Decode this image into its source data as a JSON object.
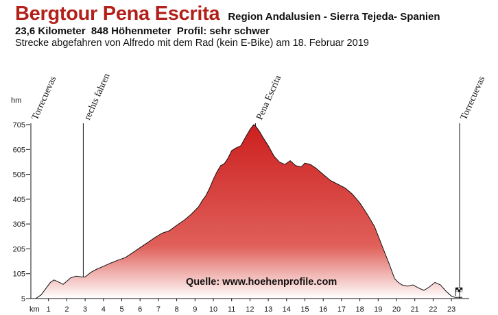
{
  "header": {
    "title": "Bergtour Pena Escrita",
    "region": "Region Andalusien - Sierra Tejeda- Spanien",
    "stats": "23,6 Kilometer  848 Höhenmeter  Profil: sehr schwer",
    "subtitle": "Strecke abgefahren von Alfredo mit dem Rad (kein E-Bike) am 18. Februar 2019"
  },
  "chart_data": {
    "type": "area",
    "title": "Bergtour Pena Escrita",
    "xlabel": "km",
    "ylabel": "hm",
    "xlim": [
      0,
      23.6
    ],
    "ylim": [
      5,
      705
    ],
    "x_ticks": [
      1,
      2,
      3,
      4,
      5,
      6,
      7,
      8,
      9,
      10,
      11,
      12,
      13,
      14,
      15,
      16,
      17,
      18,
      19,
      20,
      21,
      22,
      23
    ],
    "y_ticks": [
      5,
      105,
      205,
      305,
      405,
      505,
      605,
      705
    ],
    "fill_top_color": "#cc1f1f",
    "fill_bottom_color": "#ffffff",
    "series": [
      {
        "x": [
          0,
          0.3,
          0.6,
          0.9,
          1.1,
          1.3,
          1.6,
          1.8,
          2.0,
          2.2,
          2.5,
          2.8,
          3.0,
          3.3,
          3.6,
          4.0,
          4.4,
          4.8,
          5.2,
          5.6,
          6.0,
          6.4,
          6.8,
          7.2,
          7.6,
          8.0,
          8.4,
          8.8,
          9.2,
          9.4,
          9.6,
          9.8,
          10.0,
          10.2,
          10.4,
          10.6,
          10.8,
          11.0,
          11.2,
          11.5,
          11.8,
          12.0,
          12.2,
          12.3,
          12.5,
          12.7,
          13.0,
          13.3,
          13.6,
          13.9,
          14.2,
          14.5,
          14.8,
          15.0,
          15.3,
          15.6,
          16.0,
          16.4,
          16.8,
          17.2,
          17.6,
          18.0,
          18.4,
          18.8,
          19.2,
          19.6,
          19.9,
          20.1,
          20.3,
          20.6,
          20.9,
          21.2,
          21.5,
          21.8,
          22.1,
          22.4,
          22.7,
          23.0,
          23.2,
          23.6
        ],
        "y": [
          5,
          5,
          20,
          50,
          70,
          80,
          70,
          62,
          75,
          88,
          95,
          92,
          92,
          110,
          122,
          135,
          148,
          160,
          170,
          190,
          210,
          230,
          250,
          268,
          278,
          300,
          320,
          345,
          375,
          400,
          420,
          450,
          485,
          515,
          540,
          548,
          570,
          600,
          610,
          620,
          660,
          685,
          705,
          700,
          680,
          655,
          620,
          580,
          555,
          545,
          560,
          540,
          535,
          550,
          545,
          530,
          505,
          480,
          465,
          450,
          425,
          390,
          345,
          295,
          220,
          145,
          85,
          70,
          60,
          55,
          60,
          48,
          38,
          52,
          70,
          60,
          35,
          15,
          10,
          10
        ]
      }
    ],
    "markers": [
      {
        "label": "Torrecuevas",
        "km": 0
      },
      {
        "label": "rechts fahren",
        "km": 2.9
      },
      {
        "label": "Pena Escrita",
        "km": 12.3
      },
      {
        "label": "Torrecuevas",
        "km": 23.6
      }
    ],
    "annotation": "Quelle: www.hoehenprofile.com"
  }
}
